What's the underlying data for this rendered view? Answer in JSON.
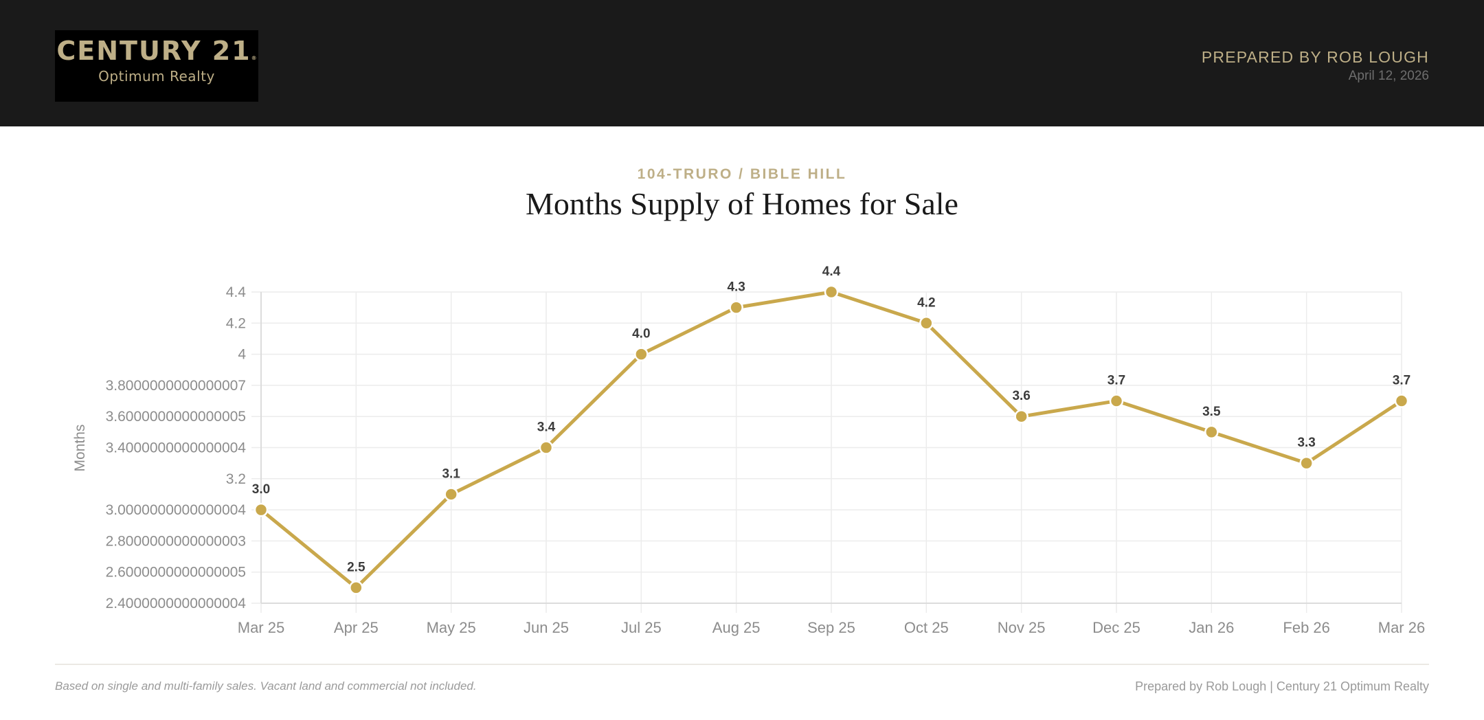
{
  "header": {
    "logo": {
      "brand": "CENTURY 21",
      "registered_mark": "®",
      "office": "Optimum Realty"
    },
    "prepared_by": "PREPARED BY ROB LOUGH",
    "date": "April 12, 2026"
  },
  "report": {
    "area": "104-TRURO / BIBLE HILL",
    "title": "Months Supply of Homes for Sale"
  },
  "colors": {
    "header_bg": "#1a1a1a",
    "accent_gold": "#beaf87",
    "series_gold": "#c9a84c",
    "grid": "#ececec",
    "axis_text": "#8c8c8c"
  },
  "chart_data": {
    "type": "line",
    "title": "Months Supply of Homes for Sale",
    "subtitle": "104-TRURO / BIBLE HILL",
    "xlabel": "",
    "ylabel": "Months",
    "categories": [
      "Mar 25",
      "Apr 25",
      "May 25",
      "Jun 25",
      "Jul 25",
      "Aug 25",
      "Sep 25",
      "Oct 25",
      "Nov 25",
      "Dec 25",
      "Jan 26",
      "Feb 26",
      "Mar 26"
    ],
    "series": [
      {
        "name": "Months Supply",
        "values": [
          3.0,
          2.5,
          3.1,
          3.4,
          4.0,
          4.3,
          4.4,
          4.2,
          3.6,
          3.7,
          3.5,
          3.3,
          3.7
        ],
        "data_labels": [
          "3.0",
          "2.5",
          "3.1",
          "3.4",
          "4.0",
          "4.3",
          "4.4",
          "4.2",
          "3.6",
          "3.7",
          "3.5",
          "3.3",
          "3.7"
        ]
      }
    ],
    "ylim": [
      2.4,
      4.4
    ],
    "y_ticks": [
      4.4,
      4.2,
      4.0,
      3.8,
      3.6,
      3.4,
      3.2,
      3.0,
      2.8,
      2.6,
      2.4
    ],
    "y_tick_labels": [
      "4.4",
      "4.2",
      "4",
      "3.8000000000000007",
      "3.6000000000000005",
      "3.4000000000000004",
      "3.2",
      "3.0000000000000004",
      "2.8000000000000003",
      "2.6000000000000005",
      "2.4000000000000004"
    ],
    "grid": true,
    "legend": "none"
  },
  "footer": {
    "note": "Based on single and multi-family sales. Vacant land and commercial not included.",
    "credit": "Prepared by Rob Lough | Century 21 Optimum Realty"
  }
}
